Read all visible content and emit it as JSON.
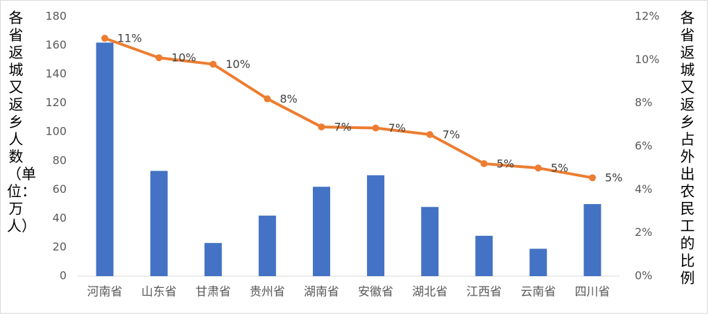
{
  "chart_data": {
    "type": "bar",
    "categories": [
      "河南省",
      "山东省",
      "甘肃省",
      "贵州省",
      "湖南省",
      "安徽省",
      "湖北省",
      "江西省",
      "云南省",
      "四川省"
    ],
    "series": [
      {
        "name": "",
        "type": "bar",
        "axis": "left",
        "values": [
          162,
          73,
          23,
          42,
          62,
          70,
          48,
          28,
          19,
          50
        ]
      },
      {
        "name": "",
        "type": "line",
        "axis": "right",
        "values": [
          0.11,
          0.101,
          0.098,
          0.082,
          0.069,
          0.0685,
          0.0655,
          0.052,
          0.05,
          0.0455
        ],
        "data_labels": [
          "11%",
          "10%",
          "10%",
          "8%",
          "7%",
          "7%",
          "7%",
          "5%",
          "5%",
          "5%"
        ]
      }
    ],
    "ylabel": "各省返城又返乡人数（单位：万人）",
    "y2label": "各省返城又返乡占外出农民工的比例",
    "ylim": [
      0,
      180
    ],
    "y2lim": [
      0,
      0.12
    ],
    "yticks": [
      "0",
      "20",
      "40",
      "60",
      "80",
      "100",
      "120",
      "140",
      "160",
      "180"
    ],
    "y2ticks": [
      "0%",
      "2%",
      "4%",
      "6%",
      "8%",
      "10%",
      "12%"
    ],
    "grid": false,
    "legend": "none",
    "colors": {
      "bar": "#4472c4",
      "line": "#ed7d31",
      "axis": "#d9d9d9",
      "tick_text": "#595959",
      "label_text": "#404040"
    }
  }
}
